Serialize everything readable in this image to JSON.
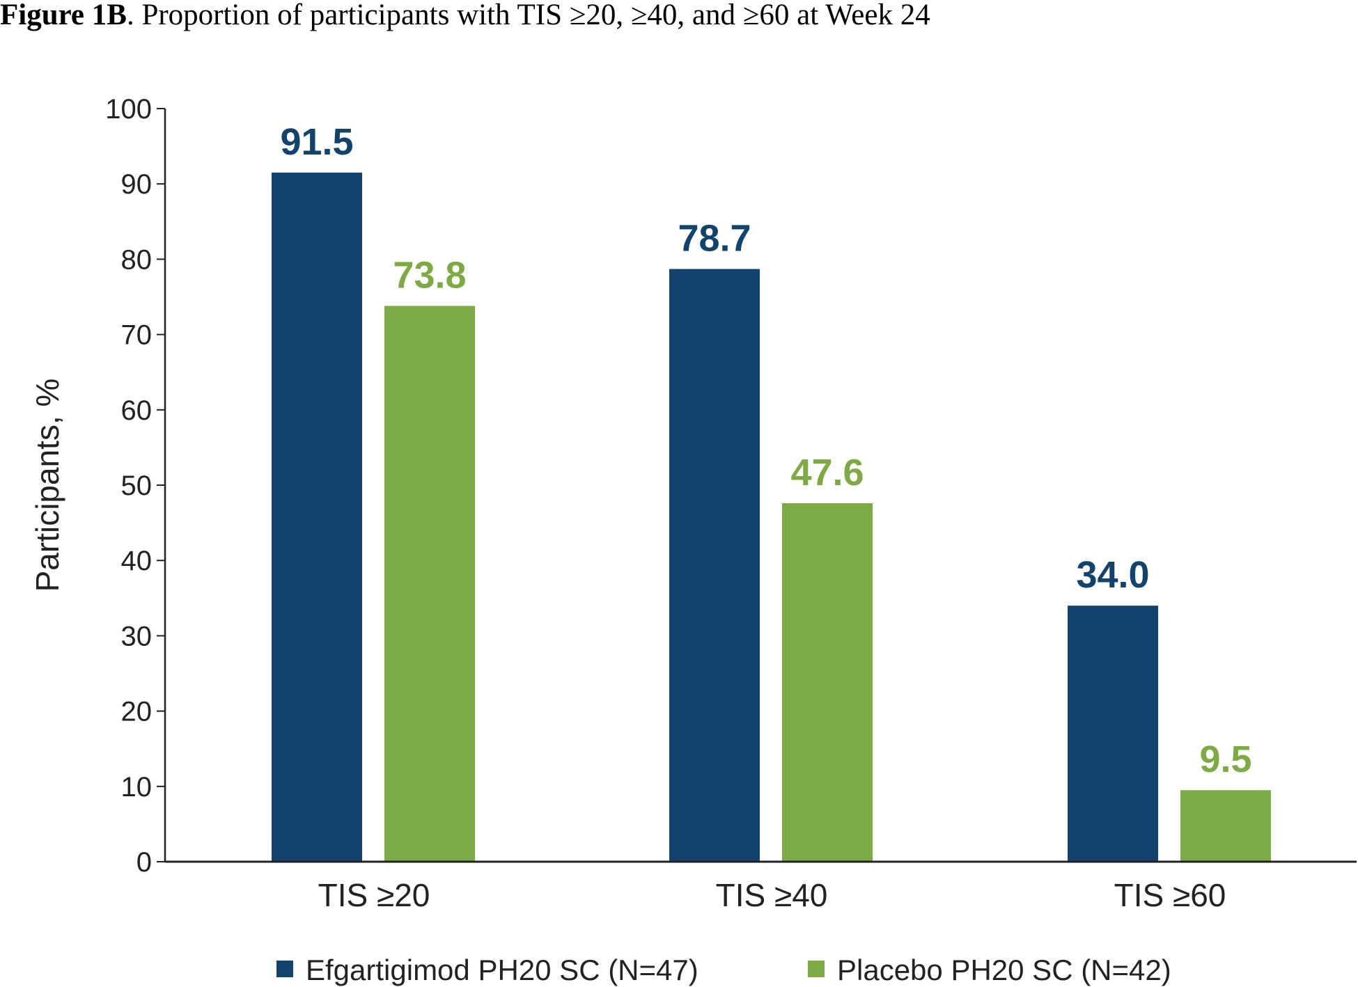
{
  "caption": {
    "label": "Figure 1B",
    "text": ". Proportion of participants with TIS ≥20, ≥40, and ≥60 at Week 24"
  },
  "chart_data": {
    "type": "bar",
    "title": "",
    "xlabel": "",
    "ylabel": "Participants, %",
    "ylim": [
      0,
      100
    ],
    "yticks": [
      0,
      10,
      20,
      30,
      40,
      50,
      60,
      70,
      80,
      90,
      100
    ],
    "grid": false,
    "legend_position": "bottom",
    "categories": [
      "TIS ≥20",
      "TIS ≥40",
      "TIS ≥60"
    ],
    "series": [
      {
        "name": "Efgartigimod PH20 SC (N=47)",
        "color": "#12436d",
        "values": [
          91.5,
          78.7,
          34.0
        ],
        "labels": [
          "91.5",
          "78.7",
          "34.0"
        ]
      },
      {
        "name": "Placebo PH20 SC (N=42)",
        "color": "#7daa44",
        "values": [
          73.8,
          47.6,
          9.5
        ],
        "labels": [
          "73.8",
          "47.6",
          "9.5"
        ]
      }
    ]
  }
}
